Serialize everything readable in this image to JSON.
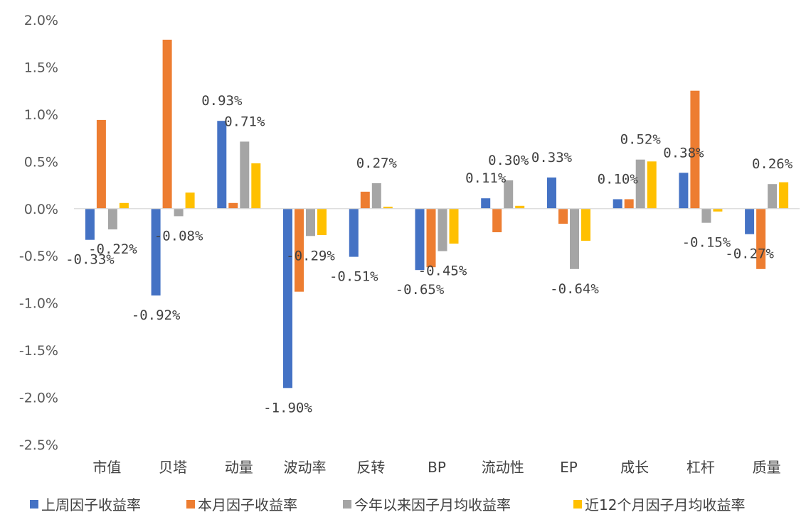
{
  "chart_data": {
    "type": "bar",
    "title": "",
    "xlabel": "",
    "ylabel": "",
    "ylim": [
      -2.5,
      2.0
    ],
    "y_ticks": [
      "2.0%",
      "1.5%",
      "1.0%",
      "0.5%",
      "0.0%",
      "-0.5%",
      "-1.0%",
      "-1.5%",
      "-2.0%",
      "-2.5%"
    ],
    "y_tick_values": [
      2.0,
      1.5,
      1.0,
      0.5,
      0.0,
      -0.5,
      -1.0,
      -1.5,
      -2.0,
      -2.5
    ],
    "grid": false,
    "legend_position": "bottom",
    "categories": [
      "市值",
      "贝塔",
      "动量",
      "波动率",
      "反转",
      "BP",
      "流动性",
      "EP",
      "成长",
      "杠杆",
      "质量"
    ],
    "series": [
      {
        "name": "上周因子收益率",
        "color": "#4472C4",
        "values": [
          -0.33,
          -0.92,
          0.93,
          -1.9,
          -0.51,
          -0.65,
          0.11,
          0.33,
          0.1,
          0.38,
          -0.27
        ],
        "labels": [
          "-0.33%",
          "-0.92%",
          "0.93%",
          "-1.90%",
          "-0.51%",
          "-0.65%",
          "0.11%",
          "0.33%",
          "0.10%",
          "0.38%",
          "-0.27%"
        ]
      },
      {
        "name": "本月因子收益率",
        "color": "#ED7D31",
        "values": [
          0.94,
          1.79,
          0.06,
          -0.88,
          0.18,
          -0.62,
          -0.25,
          -0.16,
          0.1,
          1.25,
          -0.64
        ],
        "labels": [
          "",
          "",
          "",
          "",
          "",
          "",
          "",
          "",
          "",
          "",
          ""
        ]
      },
      {
        "name": "今年以来因子月均收益率",
        "color": "#A5A5A5",
        "values": [
          -0.22,
          -0.08,
          0.71,
          -0.29,
          0.27,
          -0.45,
          0.3,
          -0.64,
          0.52,
          -0.15,
          0.26
        ],
        "labels": [
          "-0.22%",
          "-0.08%",
          "0.71%",
          "-0.29%",
          "0.27%",
          "-0.45%",
          "0.30%",
          "-0.64%",
          "0.52%",
          "-0.15%",
          "0.26%"
        ]
      },
      {
        "name": "近12个月因子月均收益率",
        "color": "#FFC000",
        "values": [
          0.06,
          0.17,
          0.48,
          -0.28,
          0.02,
          -0.37,
          0.03,
          -0.34,
          0.5,
          -0.03,
          0.28
        ],
        "labels": [
          "",
          "",
          "",
          "",
          "",
          "",
          "",
          "",
          "",
          "",
          ""
        ]
      }
    ]
  }
}
